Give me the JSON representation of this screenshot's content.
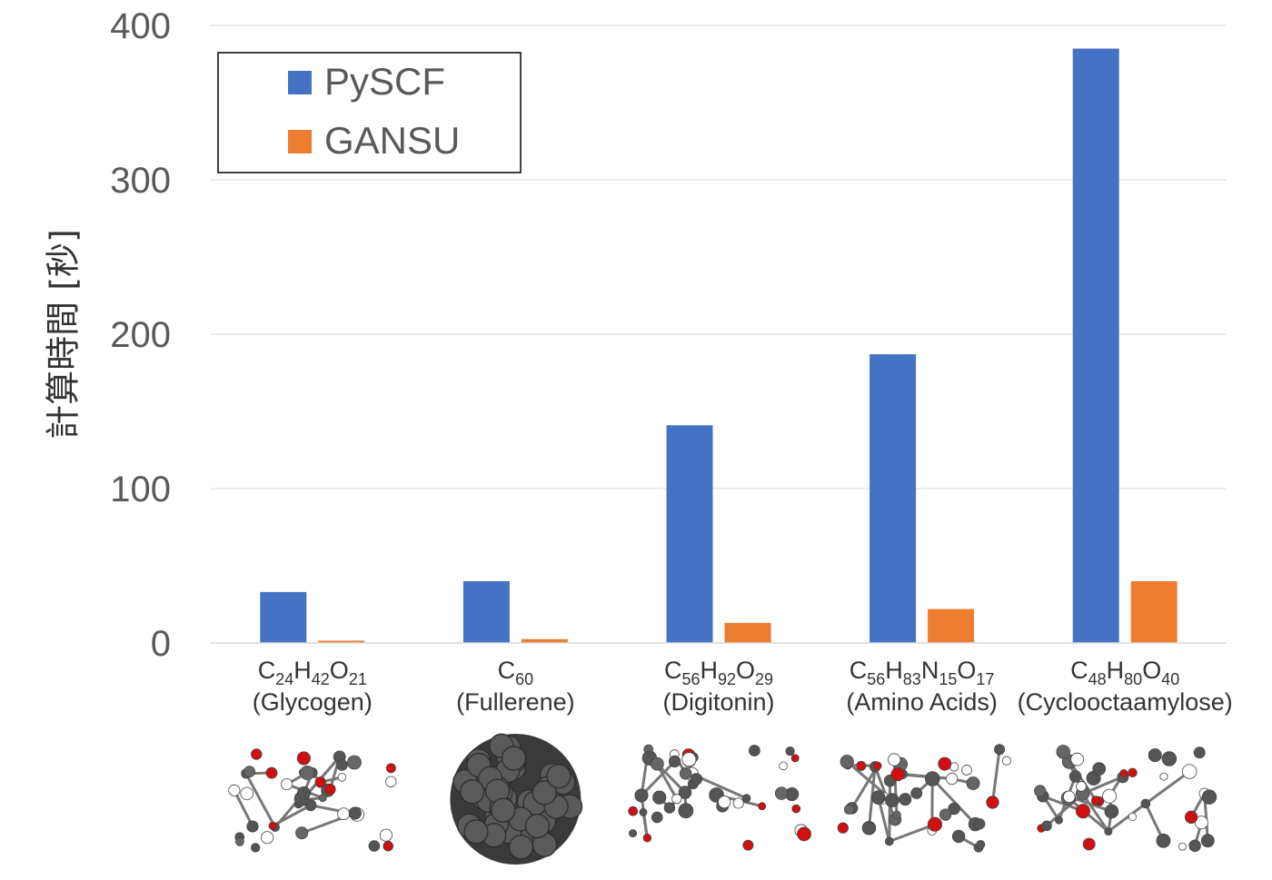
{
  "chart_data": {
    "type": "bar",
    "ylabel": "計算時間 [秒]",
    "ylim": [
      0,
      400
    ],
    "yticks": [
      0,
      100,
      200,
      300,
      400
    ],
    "grid": true,
    "legend_position": "top-left",
    "categories": [
      {
        "formula": [
          [
            "C",
            "24"
          ],
          [
            "H",
            "42"
          ],
          [
            "O",
            "21"
          ]
        ],
        "name": "(Glycogen)"
      },
      {
        "formula": [
          [
            "C",
            "60"
          ]
        ],
        "name": "(Fullerene)"
      },
      {
        "formula": [
          [
            "C",
            "56"
          ],
          [
            "H",
            "92"
          ],
          [
            "O",
            "29"
          ]
        ],
        "name": "(Digitonin)"
      },
      {
        "formula": [
          [
            "C",
            "56"
          ],
          [
            "H",
            "83"
          ],
          [
            "N",
            "15"
          ],
          [
            "O",
            "17"
          ]
        ],
        "name": "(Amino Acids)"
      },
      {
        "formula": [
          [
            "C",
            "48"
          ],
          [
            "H",
            "80"
          ],
          [
            "O",
            "40"
          ]
        ],
        "name": "(Cyclooctaamylose)"
      }
    ],
    "series": [
      {
        "name": "PySCF",
        "color": "#4472C4",
        "values": [
          33,
          40,
          141,
          187,
          385
        ]
      },
      {
        "name": "GANSU",
        "color": "#ED7D31",
        "values": [
          1.5,
          2.5,
          13,
          22,
          40
        ]
      }
    ],
    "molecule_images": [
      "glycogen-molecule",
      "fullerene-molecule",
      "digitonin-molecule",
      "amino-acids-molecule",
      "cyclooctaamylose-molecule"
    ]
  }
}
